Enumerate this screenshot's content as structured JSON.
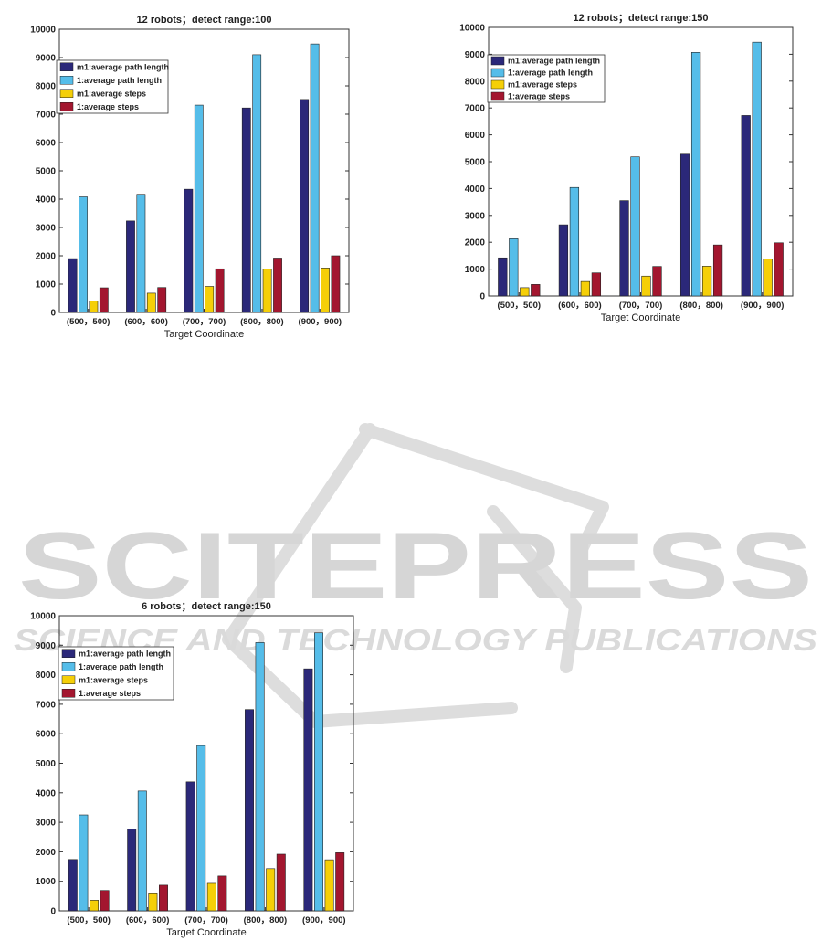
{
  "watermark": {
    "main": "SCITEPRESS",
    "sub": "SCIENCE AND TECHNOLOGY PUBLICATIONS",
    "colors": {
      "text": "#d4d4d4",
      "logo": "#dadada"
    }
  },
  "colors": {
    "m1_path": "#2b2879",
    "base_path": "#55bde9",
    "m1_steps": "#f5cf08",
    "base_steps": "#a3162f",
    "axis": "#333333",
    "text": "#222222"
  },
  "chart_data": [
    {
      "type": "bar",
      "title": "12 robots；detect range:100",
      "xlabel": "Target Coordinate",
      "ylabel": "",
      "ylim": [
        0,
        10000
      ],
      "yticks": [
        0,
        1000,
        2000,
        3000,
        4000,
        5000,
        6000,
        7000,
        8000,
        9000,
        10000
      ],
      "grid": false,
      "legend_position": "top-left",
      "categories": [
        "(500，500)",
        "(600，600)",
        "(700，700)",
        "(800，800)",
        "(900，900)"
      ],
      "series": [
        {
          "name": "m1:average path length",
          "color": "#2b2879",
          "values": [
            1900,
            3230,
            4350,
            7220,
            7520
          ]
        },
        {
          "name": "1:average path length",
          "color": "#55bde9",
          "values": [
            4080,
            4170,
            7320,
            9100,
            9480
          ]
        },
        {
          "name": "m1:average steps",
          "color": "#f5cf08",
          "values": [
            400,
            680,
            920,
            1530,
            1570
          ]
        },
        {
          "name": "1:average steps",
          "color": "#a3162f",
          "values": [
            870,
            880,
            1540,
            1920,
            2000
          ]
        }
      ]
    },
    {
      "type": "bar",
      "title": "12 robots；detect range:150",
      "xlabel": "Target Coordinate",
      "ylabel": "",
      "ylim": [
        0,
        10000
      ],
      "yticks": [
        0,
        1000,
        2000,
        3000,
        4000,
        5000,
        6000,
        7000,
        8000,
        9000,
        10000
      ],
      "grid": false,
      "legend_position": "top-left",
      "categories": [
        "(500，500)",
        "(600，600)",
        "(700，700)",
        "(800，800)",
        "(900，900)"
      ],
      "series": [
        {
          "name": "m1:average path length",
          "color": "#2b2879",
          "values": [
            1420,
            2650,
            3550,
            5280,
            6720
          ]
        },
        {
          "name": "1:average path length",
          "color": "#55bde9",
          "values": [
            2130,
            4040,
            5180,
            9070,
            9450
          ]
        },
        {
          "name": "m1:average steps",
          "color": "#f5cf08",
          "values": [
            310,
            540,
            740,
            1110,
            1380
          ]
        },
        {
          "name": "1:average steps",
          "color": "#a3162f",
          "values": [
            430,
            860,
            1100,
            1900,
            1980
          ]
        }
      ]
    },
    {
      "type": "bar",
      "title": "6 robots；detect range:150",
      "xlabel": "Target Coordinate",
      "ylabel": "",
      "ylim": [
        0,
        10000
      ],
      "yticks": [
        0,
        1000,
        2000,
        3000,
        4000,
        5000,
        6000,
        7000,
        8000,
        9000,
        10000
      ],
      "grid": false,
      "legend_position": "top-left",
      "categories": [
        "(500，500)",
        "(600，600)",
        "(700，700)",
        "(800，800)",
        "(900，900)"
      ],
      "series": [
        {
          "name": "m1:average path length",
          "color": "#2b2879",
          "values": [
            1740,
            2770,
            4370,
            6820,
            8200
          ]
        },
        {
          "name": "1:average path length",
          "color": "#55bde9",
          "values": [
            3250,
            4060,
            5600,
            9090,
            9420
          ]
        },
        {
          "name": "m1:average steps",
          "color": "#f5cf08",
          "values": [
            360,
            580,
            930,
            1430,
            1730
          ]
        },
        {
          "name": "1:average steps",
          "color": "#a3162f",
          "values": [
            690,
            870,
            1180,
            1920,
            1970
          ]
        }
      ]
    }
  ]
}
